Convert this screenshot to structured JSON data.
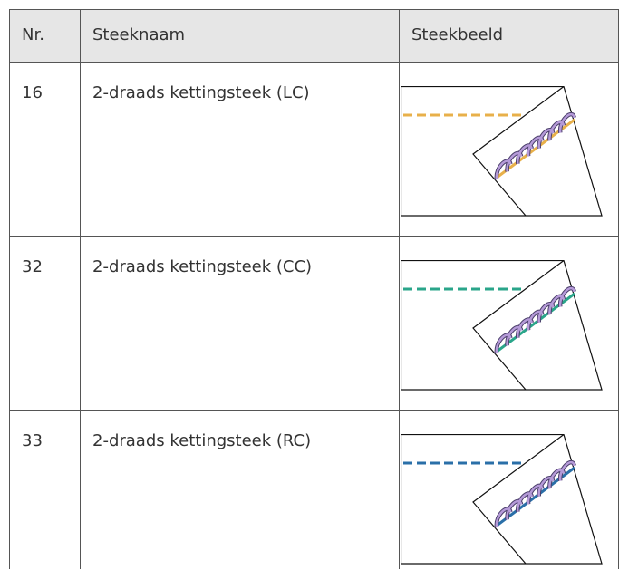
{
  "header": [
    "Nr.",
    "Steeknaam",
    "Steekbeeld"
  ],
  "rows": [
    [
      "16",
      "2-draads kettingsteek (LC)"
    ],
    [
      "32",
      "2-draads kettingsteek (CC)"
    ],
    [
      "33",
      "2-draads kettingsteek (RC)"
    ]
  ]
}
